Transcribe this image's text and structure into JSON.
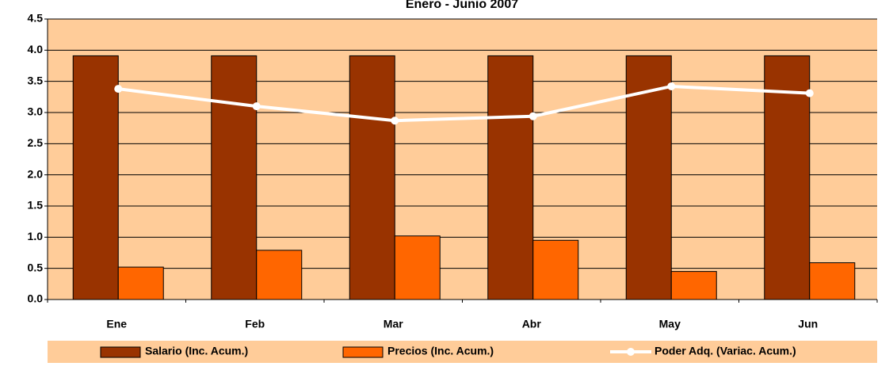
{
  "chart_data": {
    "type": "bar",
    "title": "Enero - Junio 2007",
    "categories": [
      "Ene",
      "Feb",
      "Mar",
      "Abr",
      "May",
      "Jun"
    ],
    "series": [
      {
        "name": "Salario (Inc. Acum.)",
        "color": "#993300",
        "type": "bar",
        "values": [
          3.91,
          3.91,
          3.91,
          3.91,
          3.91,
          3.91
        ]
      },
      {
        "name": "Precios (Inc. Acum.)",
        "color": "#ff6600",
        "type": "bar",
        "values": [
          0.52,
          0.79,
          1.02,
          0.95,
          0.45,
          0.59
        ]
      },
      {
        "name": "Poder Adq. (Variac. Acum.)",
        "color": "#ffffff",
        "type": "line",
        "values": [
          3.38,
          3.1,
          2.87,
          2.94,
          3.42,
          3.31
        ]
      }
    ],
    "ylim": [
      0,
      4.5
    ],
    "yticks": [
      {
        "value": 0,
        "label": "0.0"
      },
      0.5,
      {
        "value": 1,
        "label": "1.0"
      },
      1.5,
      {
        "value": 2,
        "label": "2.0"
      },
      2.5,
      {
        "value": 3,
        "label": "3.0"
      },
      3.5,
      {
        "value": 4,
        "label": "4.0"
      },
      4.5
    ],
    "grid": true,
    "background": "#ffcc99",
    "legend": "bottom"
  }
}
